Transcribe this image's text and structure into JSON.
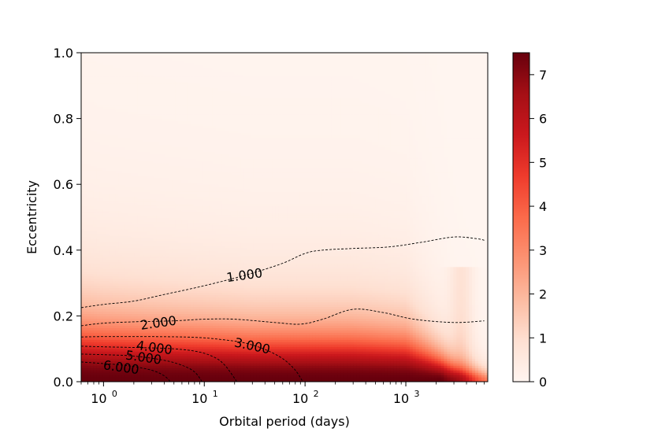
{
  "chart_data": {
    "type": "heatmap",
    "title": "",
    "xlabel": "Orbital period (days)",
    "ylabel": "Eccentricity",
    "xscale": "log",
    "xlim": [
      0.6,
      6500
    ],
    "ylim": [
      0.0,
      1.0
    ],
    "x_ticks": [
      {
        "value": 1,
        "base": "10",
        "exp": "0"
      },
      {
        "value": 10,
        "base": "10",
        "exp": "1"
      },
      {
        "value": 100,
        "base": "10",
        "exp": "2"
      },
      {
        "value": 1000,
        "base": "10",
        "exp": "3"
      }
    ],
    "y_ticks": [
      {
        "value": 0.0,
        "label": "0.0"
      },
      {
        "value": 0.2,
        "label": "0.2"
      },
      {
        "value": 0.4,
        "label": "0.4"
      },
      {
        "value": 0.6,
        "label": "0.6"
      },
      {
        "value": 0.8,
        "label": "0.8"
      },
      {
        "value": 1.0,
        "label": "1.0"
      }
    ],
    "colorbar": {
      "colormap": "Reds",
      "min": 0,
      "max": 7.5,
      "colors": [
        "#fff5f0",
        "#fee0d2",
        "#fcbba1",
        "#fc9272",
        "#fb6a4a",
        "#ef3b2c",
        "#cb181d",
        "#a50f15",
        "#67000d"
      ],
      "ticks": [
        {
          "value": 0,
          "label": "0"
        },
        {
          "value": 1,
          "label": "1"
        },
        {
          "value": 2,
          "label": "2"
        },
        {
          "value": 3,
          "label": "3"
        },
        {
          "value": 4,
          "label": "4"
        },
        {
          "value": 5,
          "label": "5"
        },
        {
          "value": 6,
          "label": "6"
        },
        {
          "value": 7,
          "label": "7"
        }
      ]
    },
    "heatmap_field": {
      "description_periods": [
        0.6,
        1,
        3,
        10,
        30,
        100,
        300,
        1000,
        3000,
        6500
      ],
      "e_half_level": [
        0.15,
        0.145,
        0.14,
        0.135,
        0.13,
        0.13,
        0.13,
        0.12,
        0.05,
        0.03
      ],
      "max_value": 7.5
    },
    "contours": [
      {
        "level": 1,
        "label": "1.000",
        "label_at": [
          25,
          0.325
        ],
        "points": [
          [
            0.6,
            0.225
          ],
          [
            1,
            0.235
          ],
          [
            2,
            0.245
          ],
          [
            4,
            0.265
          ],
          [
            8,
            0.285
          ],
          [
            15,
            0.305
          ],
          [
            30,
            0.33
          ],
          [
            60,
            0.36
          ],
          [
            100,
            0.39
          ],
          [
            150,
            0.4
          ],
          [
            300,
            0.405
          ],
          [
            700,
            0.41
          ],
          [
            1500,
            0.425
          ],
          [
            3000,
            0.44
          ],
          [
            5000,
            0.435
          ],
          [
            6000,
            0.43
          ]
        ]
      },
      {
        "level": 2,
        "label": "2.000",
        "label_at": [
          3.5,
          0.18
        ],
        "points": [
          [
            0.6,
            0.17
          ],
          [
            1,
            0.178
          ],
          [
            2,
            0.182
          ],
          [
            5,
            0.185
          ],
          [
            10,
            0.19
          ],
          [
            20,
            0.19
          ],
          [
            50,
            0.18
          ],
          [
            90,
            0.175
          ],
          [
            150,
            0.19
          ],
          [
            300,
            0.22
          ],
          [
            600,
            0.21
          ],
          [
            1200,
            0.19
          ],
          [
            3000,
            0.18
          ],
          [
            6000,
            0.185
          ]
        ]
      },
      {
        "level": 3,
        "label": "3.000",
        "label_at": [
          30,
          0.11
        ],
        "points": [
          [
            0.6,
            0.136
          ],
          [
            1,
            0.137
          ],
          [
            3,
            0.137
          ],
          [
            8,
            0.135
          ],
          [
            15,
            0.128
          ],
          [
            25,
            0.118
          ],
          [
            40,
            0.098
          ],
          [
            60,
            0.07
          ],
          [
            80,
            0.035
          ],
          [
            95,
            0.0
          ]
        ]
      },
      {
        "level": 4,
        "label": "4.000",
        "label_at": [
          3.2,
          0.105
        ],
        "points": [
          [
            0.6,
            0.108
          ],
          [
            1,
            0.106
          ],
          [
            2,
            0.104
          ],
          [
            5,
            0.1
          ],
          [
            9,
            0.09
          ],
          [
            13,
            0.072
          ],
          [
            16,
            0.05
          ],
          [
            19,
            0.02
          ],
          [
            21,
            0.0
          ]
        ]
      },
      {
        "level": 5,
        "label": "5.000",
        "label_at": [
          2.5,
          0.075
        ],
        "points": [
          [
            0.6,
            0.084
          ],
          [
            1,
            0.082
          ],
          [
            2,
            0.078
          ],
          [
            4,
            0.065
          ],
          [
            6,
            0.05
          ],
          [
            8,
            0.03
          ],
          [
            9.5,
            0.0
          ]
        ]
      },
      {
        "level": 6,
        "label": "6.000",
        "label_at": [
          1.5,
          0.045
        ],
        "points": [
          [
            0.6,
            0.06
          ],
          [
            1,
            0.055
          ],
          [
            1.8,
            0.048
          ],
          [
            3,
            0.035
          ],
          [
            4,
            0.018
          ],
          [
            4.6,
            0.0
          ]
        ]
      }
    ]
  }
}
